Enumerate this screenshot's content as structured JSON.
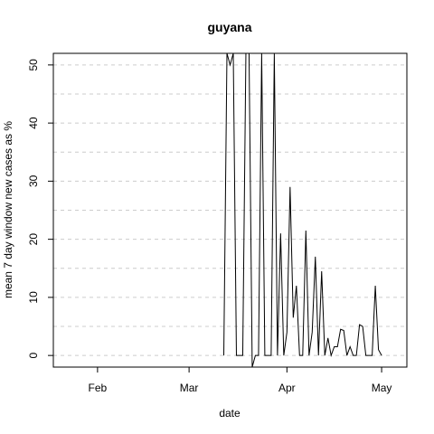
{
  "chart_data": {
    "type": "line",
    "title": "guyana",
    "xlabel": "date",
    "ylabel": "mean  7  day window new cases as %",
    "xlim": [
      "2020-01-18",
      "2020-05-09"
    ],
    "ylim": [
      -2,
      52
    ],
    "x_ticks": [
      {
        "date": "2020-02-01",
        "label": "Feb"
      },
      {
        "date": "2020-03-01",
        "label": "Mar"
      },
      {
        "date": "2020-04-01",
        "label": "Apr"
      },
      {
        "date": "2020-05-01",
        "label": "May"
      }
    ],
    "y_ticks": [
      0,
      10,
      20,
      30,
      40,
      50
    ],
    "grid": true,
    "clip_note": "values above the top axis limit are clipped at the frame",
    "series": [
      {
        "color": "#000000",
        "points": [
          [
            "2020-03-12",
            0
          ],
          [
            "2020-03-13",
            100
          ],
          [
            "2020-03-14",
            50
          ],
          [
            "2020-03-15",
            100
          ],
          [
            "2020-03-16",
            0
          ],
          [
            "2020-03-17",
            0
          ],
          [
            "2020-03-18",
            0
          ],
          [
            "2020-03-19",
            100
          ],
          [
            "2020-03-20",
            80
          ],
          [
            "2020-03-21",
            -10
          ],
          [
            "2020-03-22",
            0
          ],
          [
            "2020-03-23",
            0
          ],
          [
            "2020-03-24",
            60
          ],
          [
            "2020-03-25",
            0
          ],
          [
            "2020-03-26",
            0
          ],
          [
            "2020-03-27",
            0
          ],
          [
            "2020-03-28",
            60
          ],
          [
            "2020-03-29",
            0
          ],
          [
            "2020-03-30",
            21
          ],
          [
            "2020-03-31",
            0
          ],
          [
            "2020-04-01",
            4
          ],
          [
            "2020-04-02",
            29
          ],
          [
            "2020-04-03",
            6.5
          ],
          [
            "2020-04-04",
            12
          ],
          [
            "2020-04-05",
            0
          ],
          [
            "2020-04-06",
            0
          ],
          [
            "2020-04-07",
            21.5
          ],
          [
            "2020-04-08",
            0
          ],
          [
            "2020-04-09",
            4
          ],
          [
            "2020-04-10",
            17
          ],
          [
            "2020-04-11",
            0
          ],
          [
            "2020-04-12",
            14.5
          ],
          [
            "2020-04-13",
            0
          ],
          [
            "2020-04-14",
            3
          ],
          [
            "2020-04-15",
            0
          ],
          [
            "2020-04-16",
            1.5
          ],
          [
            "2020-04-17",
            1.5
          ],
          [
            "2020-04-18",
            4.5
          ],
          [
            "2020-04-19",
            4.3
          ],
          [
            "2020-04-20",
            0
          ],
          [
            "2020-04-21",
            1.5
          ],
          [
            "2020-04-22",
            0
          ],
          [
            "2020-04-23",
            0
          ],
          [
            "2020-04-24",
            5.3
          ],
          [
            "2020-04-25",
            5
          ],
          [
            "2020-04-26",
            0
          ],
          [
            "2020-04-27",
            0
          ],
          [
            "2020-04-28",
            0
          ],
          [
            "2020-04-29",
            12
          ],
          [
            "2020-04-30",
            1
          ],
          [
            "2020-05-01",
            0
          ]
        ]
      }
    ]
  }
}
